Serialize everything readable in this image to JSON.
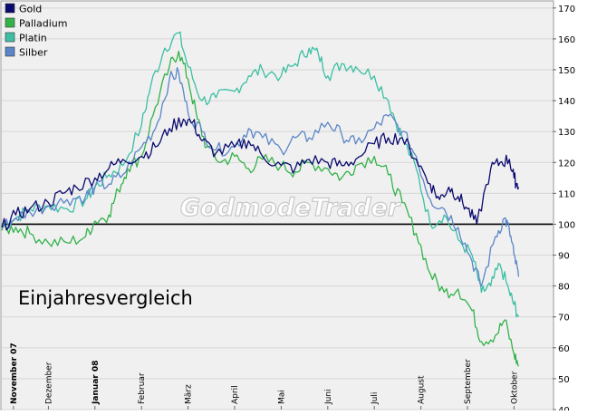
{
  "chart_data": {
    "type": "line",
    "title": "",
    "xlabel": "",
    "ylabel": "",
    "ylim": [
      40,
      172
    ],
    "y_ticks": [
      40,
      50,
      60,
      70,
      80,
      90,
      100,
      110,
      120,
      130,
      140,
      150,
      160,
      170
    ],
    "y_axis_position": "right",
    "reference_line": 100,
    "grid": true,
    "legend": "top-left",
    "annotation": "Einjahresvergleich",
    "watermark": "GodmodeTrader",
    "x_labels": [
      {
        "label": "November 07",
        "month": 0.25,
        "bold": true
      },
      {
        "label": "Dezember",
        "month": 1.0,
        "bold": false
      },
      {
        "label": "Januar 08",
        "month": 2.0,
        "bold": true
      },
      {
        "label": "Februar",
        "month": 3.0,
        "bold": false
      },
      {
        "label": "März",
        "month": 4.0,
        "bold": false
      },
      {
        "label": "April",
        "month": 5.0,
        "bold": false
      },
      {
        "label": "Mai",
        "month": 6.0,
        "bold": false
      },
      {
        "label": "Juni",
        "month": 7.0,
        "bold": false
      },
      {
        "label": "Juli",
        "month": 8.0,
        "bold": false
      },
      {
        "label": "August",
        "month": 9.0,
        "bold": false
      },
      {
        "label": "September",
        "month": 10.0,
        "bold": false
      },
      {
        "label": "Oktober",
        "month": 11.0,
        "bold": false
      }
    ],
    "series": [
      {
        "name": "Gold",
        "color": "#0a0a6e",
        "points": [
          [
            0,
            99
          ],
          [
            0.3,
            103
          ],
          [
            0.6,
            105
          ],
          [
            1.0,
            107
          ],
          [
            1.3,
            110
          ],
          [
            1.6,
            112
          ],
          [
            2.0,
            115
          ],
          [
            2.3,
            118
          ],
          [
            2.6,
            121
          ],
          [
            3.0,
            122
          ],
          [
            3.3,
            125
          ],
          [
            3.6,
            131
          ],
          [
            3.9,
            134
          ],
          [
            4.1,
            133
          ],
          [
            4.3,
            127
          ],
          [
            4.6,
            123
          ],
          [
            5.0,
            125
          ],
          [
            5.3,
            127
          ],
          [
            5.6,
            122
          ],
          [
            6.0,
            119
          ],
          [
            6.3,
            118
          ],
          [
            6.6,
            121
          ],
          [
            7.0,
            120
          ],
          [
            7.3,
            119
          ],
          [
            7.6,
            121
          ],
          [
            8.0,
            126
          ],
          [
            8.3,
            128
          ],
          [
            8.6,
            128
          ],
          [
            8.9,
            121
          ],
          [
            9.2,
            113
          ],
          [
            9.4,
            108
          ],
          [
            9.6,
            112
          ],
          [
            9.8,
            109
          ],
          [
            10.0,
            105
          ],
          [
            10.2,
            100
          ],
          [
            10.5,
            118
          ],
          [
            10.7,
            120
          ],
          [
            10.9,
            121
          ],
          [
            11.0,
            115
          ],
          [
            11.1,
            112
          ]
        ]
      },
      {
        "name": "Palladium",
        "color": "#33b24a",
        "points": [
          [
            0,
            98
          ],
          [
            0.3,
            99
          ],
          [
            0.6,
            97
          ],
          [
            1.0,
            94
          ],
          [
            1.4,
            94
          ],
          [
            1.8,
            96
          ],
          [
            2.0,
            101
          ],
          [
            2.3,
            103
          ],
          [
            2.5,
            111
          ],
          [
            2.7,
            118
          ],
          [
            3.0,
            122
          ],
          [
            3.3,
            138
          ],
          [
            3.6,
            151
          ],
          [
            3.8,
            156
          ],
          [
            4.0,
            147
          ],
          [
            4.2,
            134
          ],
          [
            4.4,
            125
          ],
          [
            4.7,
            120
          ],
          [
            5.0,
            122
          ],
          [
            5.3,
            118
          ],
          [
            5.6,
            121
          ],
          [
            6.0,
            119
          ],
          [
            6.3,
            117
          ],
          [
            6.6,
            120
          ],
          [
            7.0,
            118
          ],
          [
            7.3,
            115
          ],
          [
            7.6,
            119
          ],
          [
            8.0,
            122
          ],
          [
            8.3,
            116
          ],
          [
            8.6,
            107
          ],
          [
            8.9,
            97
          ],
          [
            9.2,
            84
          ],
          [
            9.5,
            78
          ],
          [
            9.8,
            79
          ],
          [
            10.1,
            72
          ],
          [
            10.3,
            62
          ],
          [
            10.6,
            64
          ],
          [
            10.8,
            69
          ],
          [
            11.0,
            58
          ],
          [
            11.1,
            54
          ]
        ]
      },
      {
        "name": "Platin",
        "color": "#3cbfa4",
        "points": [
          [
            0,
            100
          ],
          [
            0.3,
            102
          ],
          [
            0.6,
            105
          ],
          [
            1.0,
            106
          ],
          [
            1.4,
            105
          ],
          [
            1.8,
            108
          ],
          [
            2.0,
            112
          ],
          [
            2.3,
            116
          ],
          [
            2.6,
            119
          ],
          [
            3.0,
            132
          ],
          [
            3.2,
            145
          ],
          [
            3.5,
            157
          ],
          [
            3.8,
            162
          ],
          [
            4.0,
            151
          ],
          [
            4.3,
            140
          ],
          [
            4.6,
            141
          ],
          [
            5.0,
            143
          ],
          [
            5.3,
            148
          ],
          [
            5.6,
            150
          ],
          [
            6.0,
            148
          ],
          [
            6.3,
            152
          ],
          [
            6.6,
            157
          ],
          [
            6.8,
            155
          ],
          [
            7.0,
            148
          ],
          [
            7.3,
            152
          ],
          [
            7.6,
            151
          ],
          [
            8.0,
            148
          ],
          [
            8.3,
            140
          ],
          [
            8.6,
            128
          ],
          [
            8.9,
            118
          ],
          [
            9.2,
            100
          ],
          [
            9.5,
            103
          ],
          [
            9.8,
            95
          ],
          [
            10.1,
            90
          ],
          [
            10.3,
            78
          ],
          [
            10.5,
            80
          ],
          [
            10.7,
            87
          ],
          [
            10.9,
            78
          ],
          [
            11.0,
            74
          ],
          [
            11.1,
            70
          ]
        ]
      },
      {
        "name": "Silber",
        "color": "#5a85c8",
        "points": [
          [
            0,
            99
          ],
          [
            0.3,
            102
          ],
          [
            0.6,
            104
          ],
          [
            1.0,
            106
          ],
          [
            1.4,
            108
          ],
          [
            1.8,
            109
          ],
          [
            2.0,
            112
          ],
          [
            2.3,
            113
          ],
          [
            2.6,
            116
          ],
          [
            3.0,
            125
          ],
          [
            3.3,
            131
          ],
          [
            3.6,
            147
          ],
          [
            3.8,
            149
          ],
          [
            4.0,
            136
          ],
          [
            4.3,
            130
          ],
          [
            4.6,
            124
          ],
          [
            5.0,
            125
          ],
          [
            5.3,
            131
          ],
          [
            5.6,
            128
          ],
          [
            6.0,
            124
          ],
          [
            6.3,
            128
          ],
          [
            6.6,
            128
          ],
          [
            7.0,
            133
          ],
          [
            7.3,
            129
          ],
          [
            7.6,
            126
          ],
          [
            8.0,
            131
          ],
          [
            8.3,
            135
          ],
          [
            8.6,
            130
          ],
          [
            8.9,
            122
          ],
          [
            9.2,
            108
          ],
          [
            9.5,
            105
          ],
          [
            9.8,
            99
          ],
          [
            10.1,
            88
          ],
          [
            10.3,
            80
          ],
          [
            10.6,
            96
          ],
          [
            10.8,
            102
          ],
          [
            10.9,
            98
          ],
          [
            11.0,
            90
          ],
          [
            11.1,
            83
          ]
        ]
      }
    ]
  }
}
